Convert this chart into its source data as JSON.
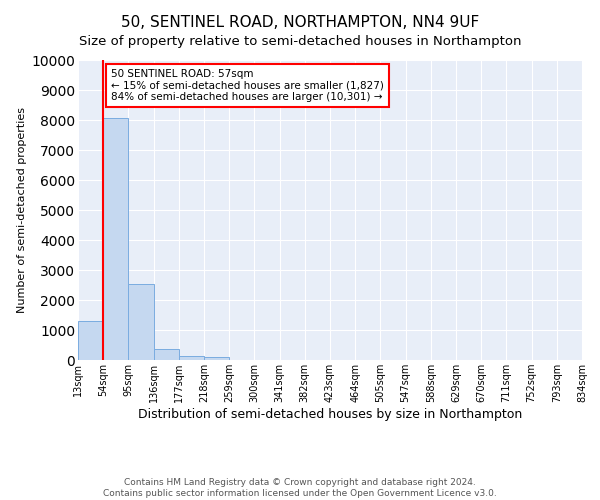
{
  "title": "50, SENTINEL ROAD, NORTHAMPTON, NN4 9UF",
  "subtitle": "Size of property relative to semi-detached houses in Northampton",
  "xlabel_bottom": "Distribution of semi-detached houses by size in Northampton",
  "ylabel": "Number of semi-detached properties",
  "bar_color": "#c5d8f0",
  "bar_edge_color": "#7aace0",
  "bar_values": [
    1300,
    8050,
    2520,
    380,
    130,
    110,
    0,
    0,
    0,
    0,
    0,
    0,
    0,
    0,
    0,
    0,
    0,
    0,
    0,
    0
  ],
  "categories": [
    "13sqm",
    "54sqm",
    "95sqm",
    "136sqm",
    "177sqm",
    "218sqm",
    "259sqm",
    "300sqm",
    "341sqm",
    "382sqm",
    "423sqm",
    "464sqm",
    "505sqm",
    "547sqm",
    "588sqm",
    "629sqm",
    "670sqm",
    "711sqm",
    "752sqm",
    "793sqm",
    "834sqm"
  ],
  "ylim": [
    0,
    10000
  ],
  "yticks": [
    0,
    1000,
    2000,
    3000,
    4000,
    5000,
    6000,
    7000,
    8000,
    9000,
    10000
  ],
  "annotation_text": "50 SENTINEL ROAD: 57sqm\n← 15% of semi-detached houses are smaller (1,827)\n84% of semi-detached houses are larger (10,301) →",
  "annotation_box_color": "white",
  "annotation_border_color": "red",
  "property_line_color": "red",
  "footer_text": "Contains HM Land Registry data © Crown copyright and database right 2024.\nContains public sector information licensed under the Open Government Licence v3.0.",
  "background_color": "#e8eef8",
  "grid_color": "#ffffff",
  "title_fontsize": 11,
  "subtitle_fontsize": 9.5,
  "tick_fontsize": 7,
  "ylabel_fontsize": 8,
  "footer_fontsize": 6.5,
  "annotation_fontsize": 7.5,
  "xlabel_fontsize": 9
}
